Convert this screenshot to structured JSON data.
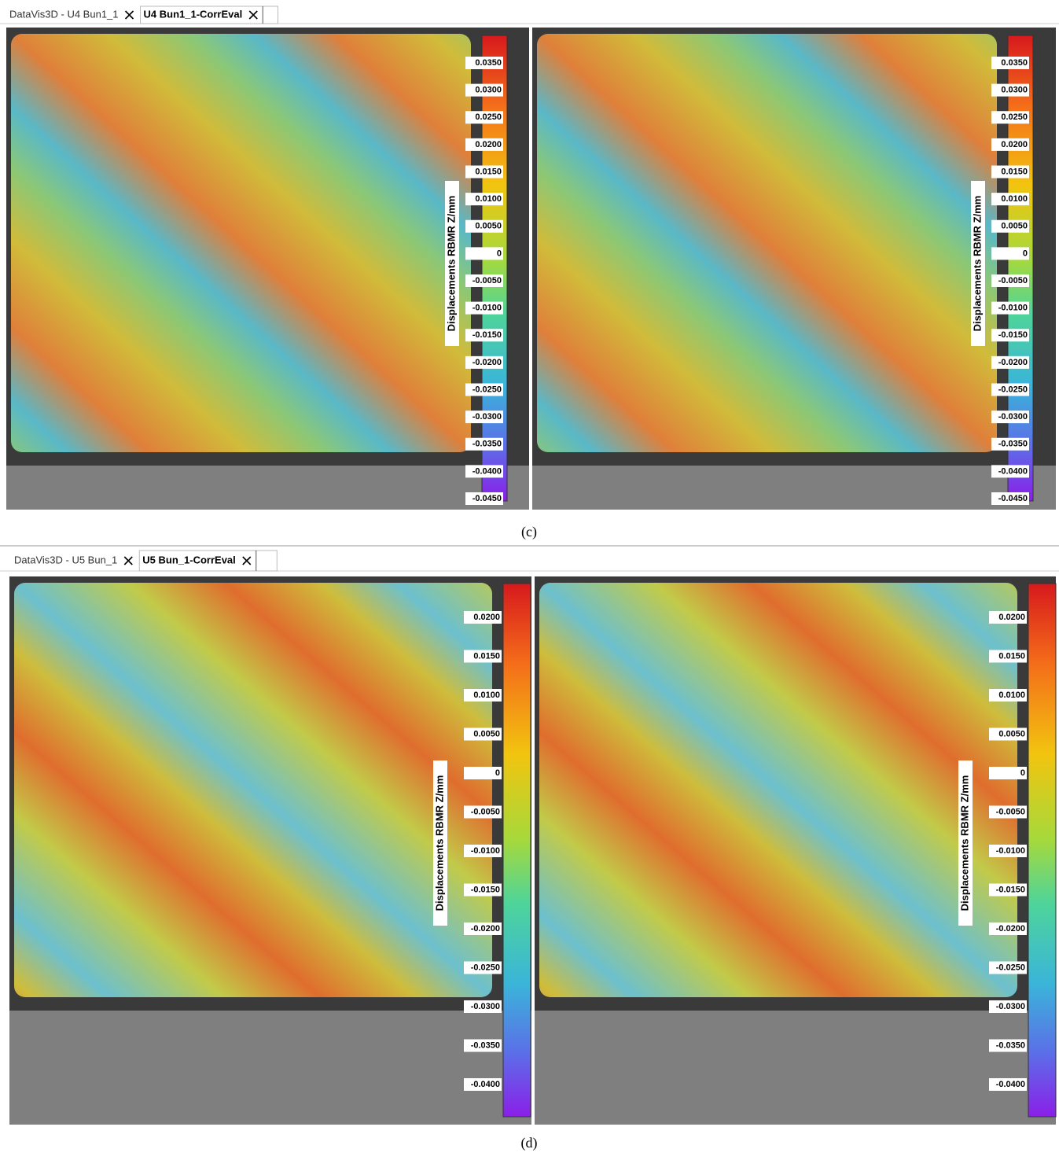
{
  "panels": [
    {
      "tabs": [
        "DataVis3D - U4 Bun1_1",
        "U4 Bun1_1-CorrEval"
      ],
      "colorbar_label": "Displacements RBMR Z/mm",
      "colorbar_ticks": [
        "0.0350",
        "0.0300",
        "0.0250",
        "0.0200",
        "0.0150",
        "0.0100",
        "0.0050",
        "0",
        "-0.0050",
        "-0.0100",
        "-0.0150",
        "-0.0200",
        "-0.0250",
        "-0.0300",
        "-0.0350",
        "-0.0400",
        "-0.0450"
      ],
      "caption": "(c)"
    },
    {
      "tabs": [
        "DataVis3D - U5 Bun_1",
        "U5 Bun_1-CorrEval"
      ],
      "colorbar_label": "Displacements RBMR Z/mm",
      "colorbar_ticks": [
        "0.0200",
        "0.0150",
        "0.0100",
        "0.0050",
        "0",
        "-0.0050",
        "-0.0100",
        "-0.0150",
        "-0.0200",
        "-0.0250",
        "-0.0300",
        "-0.0350",
        "-0.0400"
      ],
      "caption": "(d)"
    }
  ]
}
